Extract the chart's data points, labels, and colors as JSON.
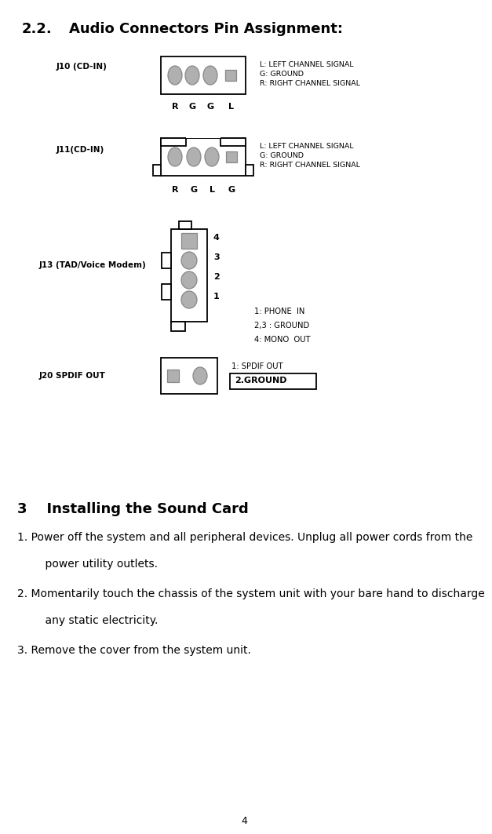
{
  "title_num": "2.2.",
  "title_text": "Audio Connectors Pin Assignment:",
  "bg_color": "#ffffff",
  "text_color": "#000000",
  "gray_fill": "#b0b0b0",
  "gray_edge": "#888888",
  "section3_title": "3    Installing the Sound Card",
  "page_num": "4",
  "j10_label": "J10 (CD-IN)",
  "j10_pin_labels": [
    "R",
    "G",
    "G",
    "L"
  ],
  "j10_info": [
    "L: LEFT CHANNEL SIGNAL",
    "G: GROUND",
    "R: RIGHT CHANNEL SIGNAL"
  ],
  "j11_label": "J11(CD-IN)",
  "j11_pin_labels": [
    "R",
    "G",
    "L",
    "G"
  ],
  "j11_info": [
    "L: LEFT CHANNEL SIGNAL",
    "G: GROUND",
    "R: RIGHT CHANNEL SIGNAL"
  ],
  "j13_label": "J13 (TAD/Voice Modem)",
  "j13_pin_labels": [
    "1",
    "2",
    "3",
    "4"
  ],
  "j13_info": [
    "1: PHONE  IN",
    "2,3 : GROUND",
    "4: MONO  OUT"
  ],
  "j20_label": "J20 SPDIF OUT",
  "j20_info_line1": "1: SPDIF OUT",
  "j20_info_line2": "2.GROUND",
  "item1a": "1. Power off the system and all peripheral devices. Unplug all power cords from the",
  "item1b": "    power utility outlets.",
  "item2a": "2. Momentarily touch the chassis of the system unit with your bare hand to discharge",
  "item2b": "    any static electricity.",
  "item3": "3. Remove the cover from the system unit."
}
